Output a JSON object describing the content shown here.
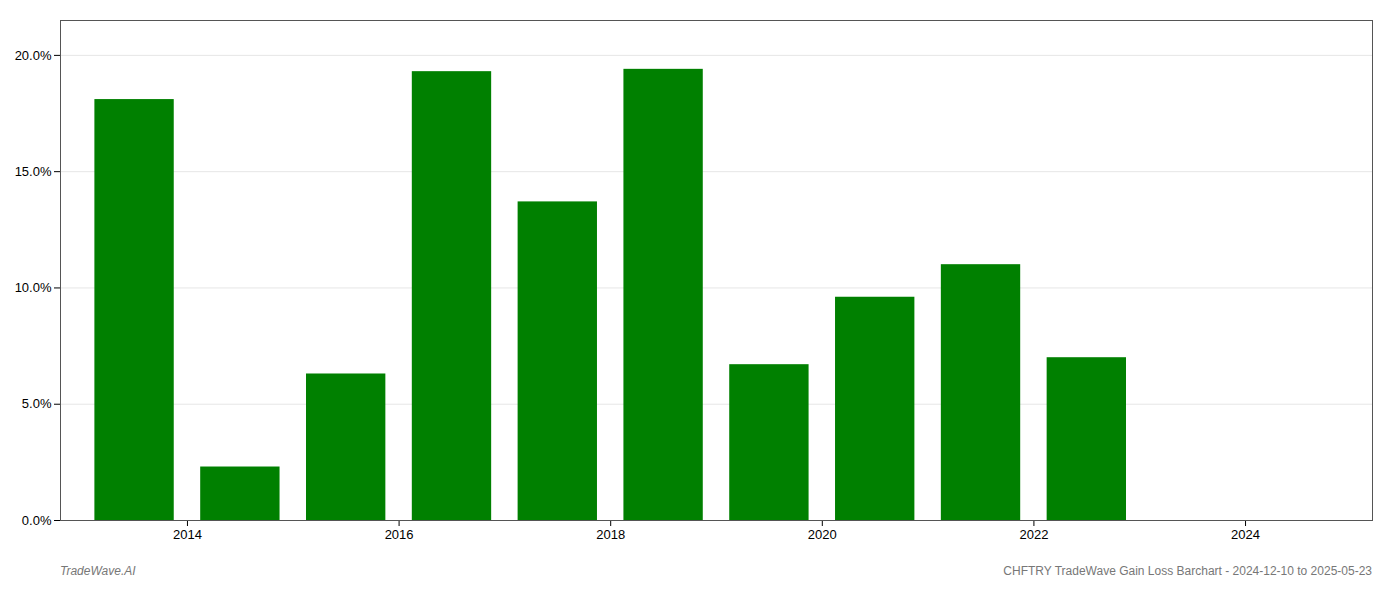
{
  "chart_data": {
    "type": "bar",
    "x": [
      2013.5,
      2014.5,
      2015.5,
      2016.5,
      2017.5,
      2018.5,
      2019.5,
      2020.5,
      2021.5,
      2022.5
    ],
    "values": [
      0.181,
      0.023,
      0.063,
      0.193,
      0.137,
      0.194,
      0.067,
      0.096,
      0.11,
      0.07
    ],
    "color": "#008000",
    "xlim": [
      2012.8,
      2025.2
    ],
    "xticks": [
      2014,
      2016,
      2018,
      2020,
      2022,
      2024
    ],
    "ylim": [
      0,
      0.215
    ],
    "yticks": [
      {
        "value": 0.0,
        "label": "0.0%"
      },
      {
        "value": 0.05,
        "label": "5.0%"
      },
      {
        "value": 0.1,
        "label": "10.0%"
      },
      {
        "value": 0.15,
        "label": "15.0%"
      },
      {
        "value": 0.2,
        "label": "20.0%"
      }
    ],
    "grid": true,
    "annotations": [
      "TradeWave.AI",
      "CHFTRY TradeWave Gain Loss Barchart - 2024-12-10 to 2025-05-23"
    ]
  }
}
